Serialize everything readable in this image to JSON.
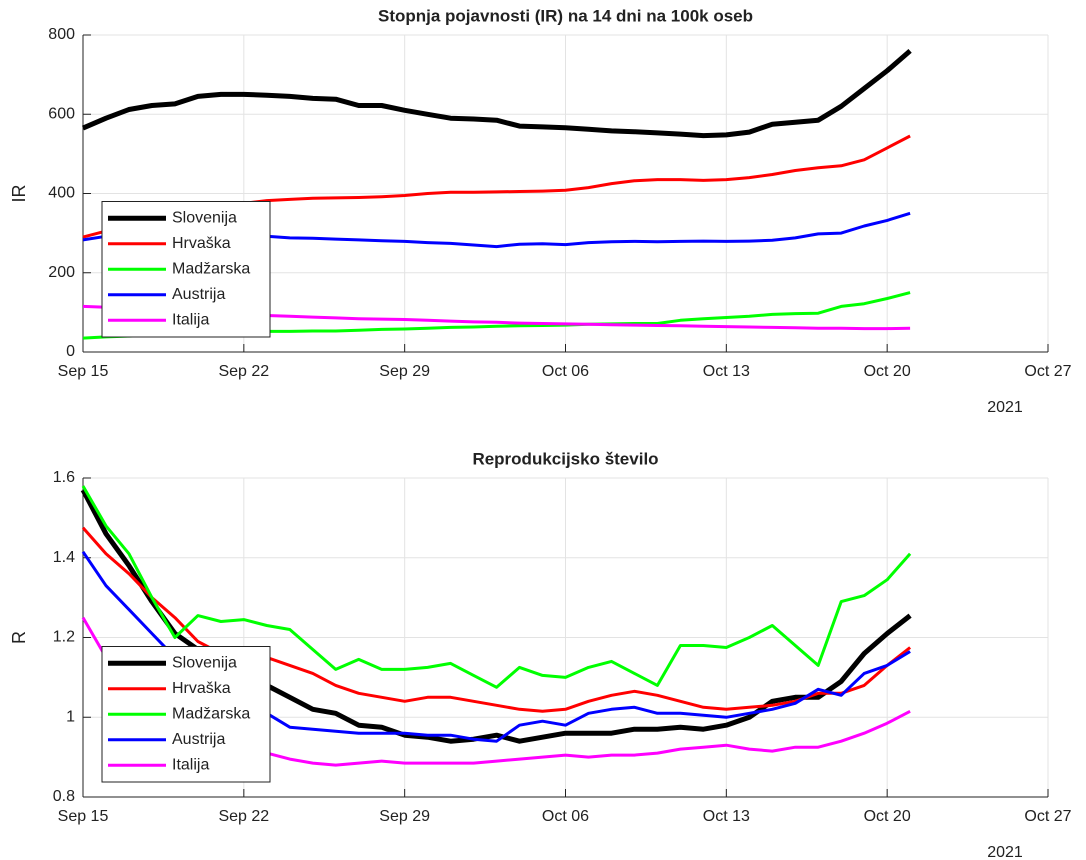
{
  "chart_data": [
    {
      "type": "line",
      "title": "Stopnja pojavnosti (IR) na 14 dni na 100k oseb",
      "ylabel": "IR",
      "xlabel_year": "2021",
      "grid": true,
      "legend": "lower left",
      "x": [
        "2021-09-15",
        "2021-09-16",
        "2021-09-17",
        "2021-09-18",
        "2021-09-19",
        "2021-09-20",
        "2021-09-21",
        "2021-09-22",
        "2021-09-23",
        "2021-09-24",
        "2021-09-25",
        "2021-09-26",
        "2021-09-27",
        "2021-09-28",
        "2021-09-29",
        "2021-09-30",
        "2021-10-01",
        "2021-10-02",
        "2021-10-03",
        "2021-10-04",
        "2021-10-05",
        "2021-10-06",
        "2021-10-07",
        "2021-10-08",
        "2021-10-09",
        "2021-10-10",
        "2021-10-11",
        "2021-10-12",
        "2021-10-13",
        "2021-10-14",
        "2021-10-15",
        "2021-10-16",
        "2021-10-17",
        "2021-10-18",
        "2021-10-19",
        "2021-10-20",
        "2021-10-21"
      ],
      "xlim": [
        "2021-09-15",
        "2021-10-27"
      ],
      "xticks": [
        {
          "value": "2021-09-15",
          "label": "Sep 15"
        },
        {
          "value": "2021-09-22",
          "label": "Sep 22"
        },
        {
          "value": "2021-09-29",
          "label": "Sep 29"
        },
        {
          "value": "2021-10-06",
          "label": "Oct 06"
        },
        {
          "value": "2021-10-13",
          "label": "Oct 13"
        },
        {
          "value": "2021-10-20",
          "label": "Oct 20"
        },
        {
          "value": "2021-10-27",
          "label": "Oct 27"
        }
      ],
      "ylim": [
        0,
        800
      ],
      "yticks": [
        0,
        200,
        400,
        600,
        800
      ],
      "series": [
        {
          "name": "Slovenija",
          "color": "#000000",
          "width": 5,
          "values": [
            565,
            590,
            612,
            622,
            626,
            645,
            650,
            650,
            648,
            645,
            640,
            638,
            622,
            622,
            610,
            600,
            590,
            588,
            585,
            570,
            568,
            566,
            562,
            558,
            556,
            553,
            550,
            546,
            548,
            555,
            575,
            580,
            585,
            620,
            665,
            710,
            760
          ]
        },
        {
          "name": "Hrvaška",
          "color": "#ff0000",
          "width": 3,
          "values": [
            290,
            305,
            320,
            335,
            345,
            355,
            365,
            375,
            382,
            385,
            388,
            389,
            390,
            392,
            395,
            400,
            403,
            403,
            404,
            405,
            406,
            408,
            415,
            425,
            432,
            435,
            435,
            433,
            435,
            440,
            448,
            458,
            465,
            470,
            485,
            515,
            545
          ]
        },
        {
          "name": "Madžarska",
          "color": "#00ff00",
          "width": 3,
          "values": [
            35,
            38,
            40,
            42,
            44,
            46,
            48,
            50,
            52,
            52,
            53,
            53,
            55,
            57,
            58,
            60,
            62,
            63,
            65,
            66,
            67,
            68,
            70,
            71,
            72,
            72,
            80,
            84,
            87,
            90,
            95,
            97,
            98,
            115,
            122,
            135,
            150
          ]
        },
        {
          "name": "Austrija",
          "color": "#0000ff",
          "width": 3,
          "values": [
            283,
            292,
            300,
            305,
            305,
            302,
            300,
            298,
            292,
            288,
            287,
            285,
            283,
            281,
            279,
            276,
            274,
            270,
            266,
            272,
            273,
            271,
            276,
            278,
            279,
            278,
            279,
            280,
            279,
            280,
            282,
            288,
            298,
            300,
            318,
            332,
            350
          ]
        },
        {
          "name": "Italija",
          "color": "#ff00ff",
          "width": 3,
          "values": [
            115,
            113,
            110,
            105,
            100,
            98,
            96,
            94,
            92,
            90,
            88,
            86,
            84,
            83,
            82,
            80,
            78,
            76,
            75,
            73,
            72,
            71,
            70,
            69,
            68,
            67,
            66,
            65,
            64,
            63,
            62,
            61,
            60,
            60,
            59,
            59,
            60
          ]
        }
      ]
    },
    {
      "type": "line",
      "title": "Reprodukcijsko število",
      "ylabel": "R",
      "xlabel_year": "2021",
      "grid": true,
      "legend": "lower left",
      "x": [
        "2021-09-15",
        "2021-09-16",
        "2021-09-17",
        "2021-09-18",
        "2021-09-19",
        "2021-09-20",
        "2021-09-21",
        "2021-09-22",
        "2021-09-23",
        "2021-09-24",
        "2021-09-25",
        "2021-09-26",
        "2021-09-27",
        "2021-09-28",
        "2021-09-29",
        "2021-09-30",
        "2021-10-01",
        "2021-10-02",
        "2021-10-03",
        "2021-10-04",
        "2021-10-05",
        "2021-10-06",
        "2021-10-07",
        "2021-10-08",
        "2021-10-09",
        "2021-10-10",
        "2021-10-11",
        "2021-10-12",
        "2021-10-13",
        "2021-10-14",
        "2021-10-15",
        "2021-10-16",
        "2021-10-17",
        "2021-10-18",
        "2021-10-19",
        "2021-10-20",
        "2021-10-21"
      ],
      "xlim": [
        "2021-09-15",
        "2021-10-27"
      ],
      "xticks": [
        {
          "value": "2021-09-15",
          "label": "Sep 15"
        },
        {
          "value": "2021-09-22",
          "label": "Sep 22"
        },
        {
          "value": "2021-09-29",
          "label": "Sep 29"
        },
        {
          "value": "2021-10-06",
          "label": "Oct 06"
        },
        {
          "value": "2021-10-13",
          "label": "Oct 13"
        },
        {
          "value": "2021-10-20",
          "label": "Oct 20"
        },
        {
          "value": "2021-10-27",
          "label": "Oct 27"
        }
      ],
      "ylim": [
        0.8,
        1.6
      ],
      "yticks": [
        0.8,
        1,
        1.2,
        1.4,
        1.6
      ],
      "series": [
        {
          "name": "Slovenija",
          "color": "#000000",
          "width": 5,
          "values": [
            1.57,
            1.46,
            1.38,
            1.29,
            1.21,
            1.17,
            1.14,
            1.11,
            1.08,
            1.05,
            1.02,
            1.01,
            0.98,
            0.975,
            0.955,
            0.95,
            0.94,
            0.945,
            0.955,
            0.94,
            0.95,
            0.96,
            0.96,
            0.96,
            0.97,
            0.97,
            0.975,
            0.97,
            0.98,
            1.0,
            1.04,
            1.05,
            1.05,
            1.09,
            1.16,
            1.21,
            1.255
          ]
        },
        {
          "name": "Hrvaška",
          "color": "#ff0000",
          "width": 3,
          "values": [
            1.475,
            1.41,
            1.36,
            1.3,
            1.25,
            1.19,
            1.16,
            1.15,
            1.15,
            1.13,
            1.11,
            1.08,
            1.06,
            1.05,
            1.04,
            1.05,
            1.05,
            1.04,
            1.03,
            1.02,
            1.015,
            1.02,
            1.04,
            1.055,
            1.065,
            1.055,
            1.04,
            1.025,
            1.02,
            1.025,
            1.03,
            1.04,
            1.06,
            1.06,
            1.08,
            1.13,
            1.175
          ]
        },
        {
          "name": "Madžarska",
          "color": "#00ff00",
          "width": 3,
          "values": [
            1.58,
            1.48,
            1.41,
            1.3,
            1.2,
            1.255,
            1.24,
            1.245,
            1.23,
            1.22,
            1.17,
            1.12,
            1.145,
            1.12,
            1.12,
            1.125,
            1.135,
            1.105,
            1.075,
            1.125,
            1.105,
            1.1,
            1.125,
            1.14,
            1.11,
            1.08,
            1.18,
            1.18,
            1.175,
            1.2,
            1.23,
            1.18,
            1.13,
            1.29,
            1.305,
            1.345,
            1.41
          ]
        },
        {
          "name": "Austrija",
          "color": "#0000ff",
          "width": 3,
          "values": [
            1.415,
            1.33,
            1.27,
            1.21,
            1.15,
            1.09,
            1.06,
            1.04,
            1.01,
            0.975,
            0.97,
            0.965,
            0.96,
            0.96,
            0.96,
            0.955,
            0.955,
            0.945,
            0.94,
            0.98,
            0.99,
            0.98,
            1.01,
            1.02,
            1.025,
            1.01,
            1.01,
            1.005,
            1.0,
            1.01,
            1.02,
            1.035,
            1.07,
            1.055,
            1.11,
            1.13,
            1.165
          ]
        },
        {
          "name": "Italija",
          "color": "#ff00ff",
          "width": 3,
          "values": [
            1.25,
            1.15,
            1.08,
            1.03,
            0.98,
            0.955,
            0.935,
            0.92,
            0.91,
            0.895,
            0.885,
            0.88,
            0.885,
            0.89,
            0.885,
            0.885,
            0.885,
            0.885,
            0.89,
            0.895,
            0.9,
            0.905,
            0.9,
            0.905,
            0.905,
            0.91,
            0.92,
            0.925,
            0.93,
            0.92,
            0.915,
            0.925,
            0.925,
            0.94,
            0.96,
            0.985,
            1.015
          ]
        }
      ]
    }
  ]
}
